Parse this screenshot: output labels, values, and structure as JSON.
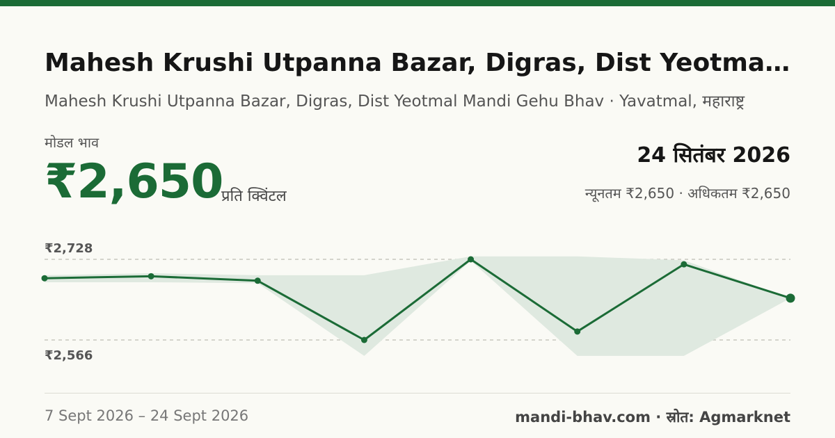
{
  "header": {
    "title": "Mahesh Krushi Utpanna Bazar, Digras, Dist Yeotmal...",
    "subtitle": "Mahesh Krushi Utpanna Bazar, Digras, Dist Yeotmal Mandi Gehu Bhav · Yavatmal, महाराष्ट्र"
  },
  "price": {
    "label": "मोडल भाव",
    "value": "₹2,650",
    "unit": "प्रति क्विंटल"
  },
  "date": {
    "current": "24 सितंबर 2026",
    "minmax": "न्यूनतम ₹2,650 · अधिकतम ₹2,650"
  },
  "footer": {
    "range": "7 Sept 2026 – 24 Sept 2026",
    "source": "mandi-bhav.com · स्रोत: Agmarknet"
  },
  "colors": {
    "accent": "#1b6b36",
    "band": "#dfe9e0"
  },
  "chart_data": {
    "type": "line",
    "title": "",
    "xlabel": "",
    "ylabel": "",
    "y_ticks": [
      {
        "value": 2728,
        "label": "₹2,728"
      },
      {
        "value": 2566,
        "label": "₹2,566"
      }
    ],
    "x_range": [
      "7 Sept 2026",
      "24 Sept 2026"
    ],
    "grid": true,
    "legend": "none",
    "series": [
      {
        "role": "modal",
        "values": [
          2690,
          2694,
          2685,
          2566,
          2728,
          2583,
          2718,
          2650
        ]
      },
      {
        "role": "max",
        "values": [
          2696,
          2700,
          2696,
          2696,
          2734,
          2734,
          2726,
          2650
        ]
      },
      {
        "role": "min",
        "values": [
          2682,
          2682,
          2680,
          2534,
          2725,
          2534,
          2534,
          2650
        ]
      }
    ]
  }
}
